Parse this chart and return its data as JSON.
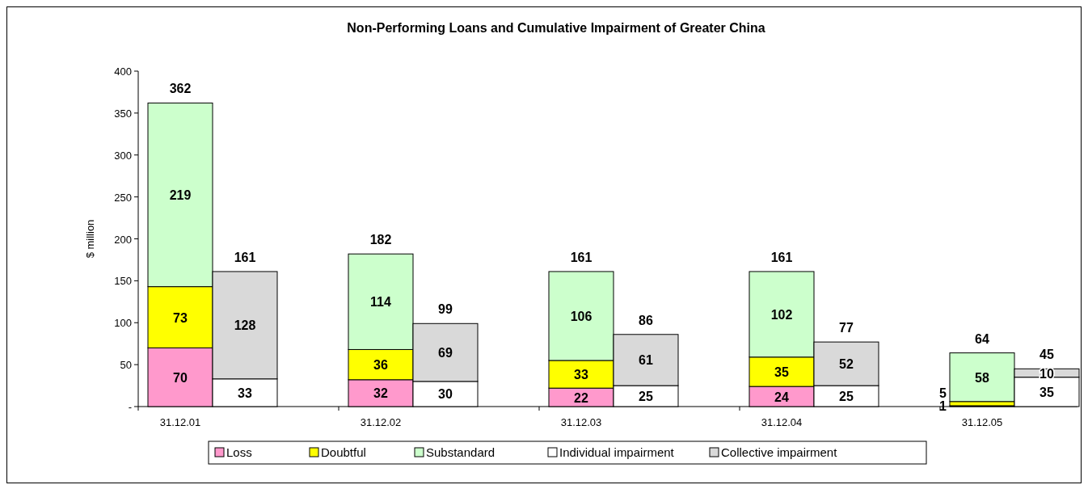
{
  "chart_data": {
    "type": "bar",
    "stacked": true,
    "title": "Non-Performing Loans and Cumulative Impairment of Greater China",
    "ylabel": "$ million",
    "categories": [
      "31.12.01",
      null,
      "31.12.02",
      null,
      "31.12.03",
      null,
      "31.12.04",
      null,
      "31.12.05",
      null
    ],
    "series": [
      {
        "name": "Loss",
        "color": "#ff99cc",
        "values": [
          70,
          null,
          32,
          null,
          22,
          null,
          24,
          null,
          1,
          null
        ]
      },
      {
        "name": "Doubtful",
        "color": "#ffff00",
        "values": [
          73,
          null,
          36,
          null,
          33,
          null,
          35,
          null,
          5,
          null
        ]
      },
      {
        "name": "Substandard",
        "color": "#ccffcc",
        "values": [
          219,
          null,
          114,
          null,
          106,
          null,
          102,
          null,
          58,
          null
        ]
      },
      {
        "name": "Individual impairment",
        "color": "#ffffff",
        "values": [
          null,
          33,
          null,
          30,
          null,
          25,
          null,
          25,
          null,
          35
        ]
      },
      {
        "name": "Collective impairment",
        "color": "#d9d9d9",
        "values": [
          null,
          128,
          null,
          69,
          null,
          61,
          null,
          52,
          null,
          10
        ]
      }
    ],
    "totals": [
      "362",
      "161",
      "182",
      "99",
      "161",
      "86",
      "161",
      "77",
      "64",
      "45"
    ],
    "data_labels": true,
    "ylim": [
      0,
      400
    ],
    "yticks": [
      {
        "value": 0,
        "label": "-"
      },
      50,
      100,
      150,
      200,
      250,
      300,
      350,
      400
    ],
    "grid": false,
    "legend": "bottom"
  }
}
